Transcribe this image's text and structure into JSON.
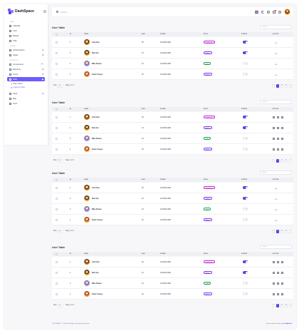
{
  "app": {
    "name": "DashSpace"
  },
  "header": {
    "search_placeholder": "Search..."
  },
  "sidebar": {
    "sections": [
      "MAIN",
      "PAGES",
      "ELEMENTS"
    ],
    "main_items": [
      {
        "label": "Calendar",
        "icon": "calendar-icon"
      },
      {
        "label": "Chat",
        "icon": "chat-icon"
      },
      {
        "label": "Boards",
        "icon": "boards-icon"
      },
      {
        "label": "Todo",
        "icon": "todo-icon"
      }
    ],
    "page_items": [
      {
        "label": "Authentication",
        "icon": "lock-icon"
      },
      {
        "label": "Pages",
        "icon": "file-icon"
      }
    ],
    "element_items": [
      {
        "label": "Components",
        "icon": "components-icon",
        "badge": "12"
      },
      {
        "label": "Elements",
        "icon": "elements-icon"
      },
      {
        "label": "Forms",
        "icon": "forms-icon"
      },
      {
        "label": "Table",
        "icon": "table-icon"
      }
    ],
    "table_sub": [
      "Basic Tables",
      "Advanced Table"
    ],
    "tail_items": [
      {
        "label": "Chart",
        "icon": "chart-icon"
      },
      {
        "label": "Map",
        "icon": "map-icon"
      },
      {
        "label": "Icons",
        "icon": "icons-icon"
      }
    ]
  },
  "tables": [
    {
      "title": "User Table",
      "search_placeholder": "Search..."
    },
    {
      "title": "User Table",
      "search_placeholder": "Search..."
    },
    {
      "title": "User Table",
      "search_placeholder": "Search..."
    },
    {
      "title": "User Table",
      "search_placeholder": "Search..."
    }
  ],
  "columns": {
    "id": "ID",
    "user": "USER",
    "age": "AGE",
    "phone": "PHONE",
    "role": "ROLE",
    "status": "STATUS",
    "action": "ACTION"
  },
  "rows": [
    {
      "id": "1",
      "name": "John Doe",
      "age": "28",
      "phone": "443-868-2098",
      "role": "Supervisor",
      "role_color": "#c026d3",
      "status_on": true
    },
    {
      "id": "2",
      "name": "Nick Jas",
      "age": "23",
      "phone": "443-868-2098",
      "role": "Admin",
      "role_color": "#7c3aed",
      "status_on": true
    },
    {
      "id": "3",
      "name": "Mike Riveza",
      "age": "19",
      "phone": "443-868-2098",
      "role": "User",
      "role_color": "#16a34a",
      "status_on": false
    },
    {
      "id": "4",
      "name": "Selen Crespo",
      "age": "30",
      "phone": "443-868-2098",
      "role": "Admin",
      "role_color": "#7c3aed",
      "status_on": false
    }
  ],
  "table_footer": {
    "rows_label": "Row",
    "rows_value": "5",
    "page_label": "Page 1 of 3",
    "pages": [
      "1",
      "2",
      "3"
    ]
  },
  "footer": {
    "copyright": "COPYRIGHT © 2023 DashSpace. All rights Reserved",
    "credit_prefix": "Hand-crafted & Made by ",
    "credit_name": "FoxiyBrand"
  },
  "colors": {
    "accent": "#4f46e5",
    "sidebar_active": "#6d5dfc"
  }
}
